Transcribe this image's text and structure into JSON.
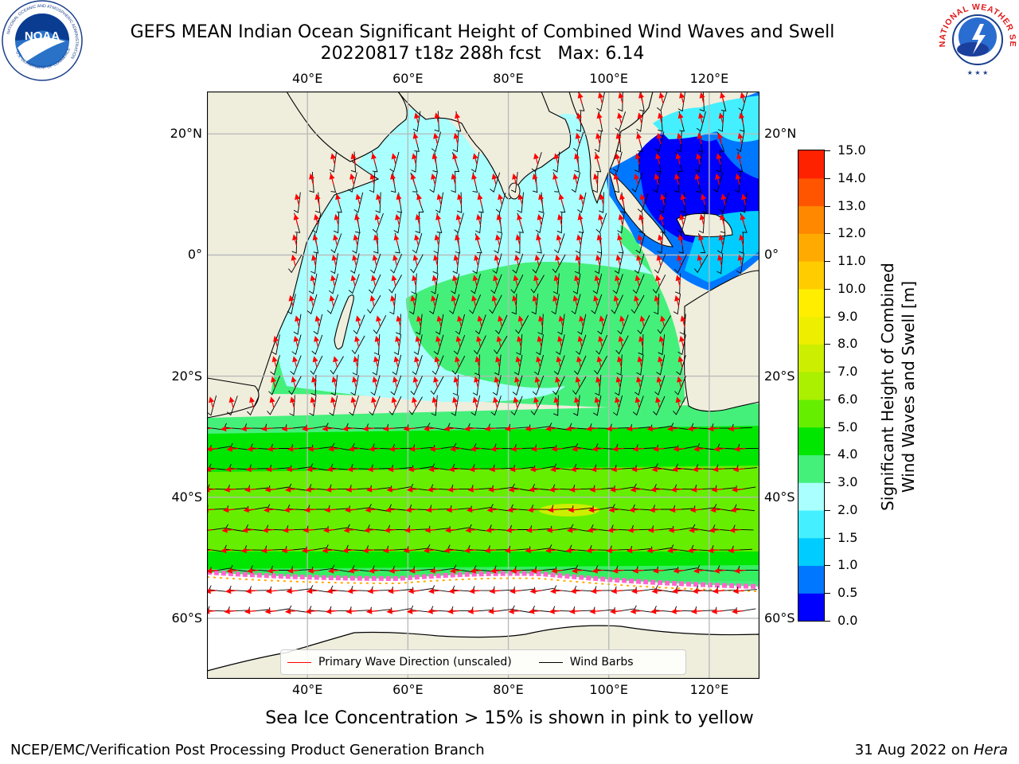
{
  "title": {
    "line1": "GEFS MEAN Indian Ocean Significant Height of Combined Wind Waves and Swell",
    "line2": "20220817 t18z 288h fcst   Max: 6.14"
  },
  "logos": {
    "left": {
      "ring_text": "NATIONAL OCEANIC AND ATMOSPHERIC ADMINISTRATION",
      "center_text": "NOAA",
      "bottom_text": "U.S. DEPARTMENT OF COMMERCE"
    },
    "right": {
      "ring_text": "NATIONAL WEATHER SERVICE"
    }
  },
  "map": {
    "lon_ticks": [
      "40°E",
      "60°E",
      "80°E",
      "100°E",
      "120°E"
    ],
    "lat_ticks": [
      "20°N",
      "0°",
      "20°S",
      "40°S",
      "60°S"
    ],
    "lon_values": [
      40,
      60,
      80,
      100,
      120
    ],
    "lat_values": [
      20,
      0,
      -20,
      -40,
      -60
    ],
    "extent": {
      "lon": [
        20,
        130
      ],
      "lat": [
        -70,
        27
      ]
    },
    "colors": {
      "land": "#efeddc",
      "sea_ice_bg": "#ffffff",
      "grid": "#b8b8b8"
    }
  },
  "legend": {
    "wave_direction": "Primary Wave Direction (unscaled)",
    "wind_barbs": "Wind Barbs",
    "wave_color": "#ff0000",
    "barb_color": "#000000"
  },
  "colorbar": {
    "title_line1": "Significant Height of Combined",
    "title_line2": "Wind Waves and Swell [m]",
    "labels": [
      "15.0",
      "14.0",
      "13.0",
      "12.0",
      "11.0",
      "10.0",
      "9.0",
      "8.0",
      "7.0",
      "6.0",
      "5.0",
      "4.0",
      "3.0",
      "2.0",
      "1.5",
      "1.0",
      "0.5",
      "0.0"
    ],
    "bounds": [
      0,
      0.5,
      1.0,
      1.5,
      2.0,
      3.0,
      4.0,
      5.0,
      6.0,
      7.0,
      8.0,
      9.0,
      10.0,
      11.0,
      12.0,
      13.0,
      14.0,
      15.0
    ],
    "colors": [
      "#0000ff",
      "#0077ff",
      "#00ccff",
      "#44f0ff",
      "#aaffff",
      "#44f07a",
      "#00e600",
      "#66ee00",
      "#aaf000",
      "#ccee00",
      "#eeee00",
      "#ffee00",
      "#ffcc00",
      "#ffaa00",
      "#ff8800",
      "#ff5500",
      "#ff2200"
    ]
  },
  "sea_ice_note": "Sea Ice Concentration > 15% is shown in pink to yellow",
  "footer": {
    "left": "NCEP/EMC/Verification Post Processing Product Generation Branch",
    "right_date": "31 Aug 2022 on ",
    "right_machine": "Hera"
  }
}
